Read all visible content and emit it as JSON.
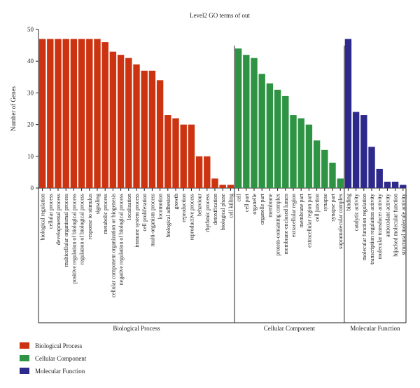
{
  "chart_data": {
    "type": "bar",
    "title": "Level2 GO terms of out",
    "ylabel": "Number of Genes",
    "ylim": [
      0,
      50
    ],
    "yticks": [
      0,
      10,
      20,
      30,
      40,
      50
    ],
    "grid": false,
    "legend_position": "bottom-left",
    "series": [
      {
        "name": "Biological Process",
        "color": "#cc3311",
        "categories": [
          "biological regulation",
          "cellular process",
          "developmental process",
          "multicellular organismal process",
          "positive regulation of biological process",
          "regulation of biological process",
          "response to stimulus",
          "signaling",
          "metabolic process",
          "cellular component organization or biogenesis",
          "negative regulation of biological process",
          "localization",
          "immune system process",
          "cell proliferation",
          "multi-organism process",
          "locomotion",
          "biological adhesion",
          "growth",
          "reproduction",
          "reproductive process",
          "behaviour",
          "rhythmic process",
          "detoxification",
          "biological phase",
          "cell killing"
        ],
        "values": [
          47,
          47,
          47,
          47,
          47,
          47,
          47,
          47,
          46,
          43,
          42,
          41,
          39,
          37,
          37,
          34,
          23,
          22,
          20,
          20,
          10,
          10,
          3,
          1,
          1
        ]
      },
      {
        "name": "Cellular Component",
        "color": "#2e9444",
        "categories": [
          "cell",
          "cell part",
          "organelle",
          "organelle part",
          "membrane",
          "protein-containing complex",
          "membrane-enclosed lumen",
          "extracellular region",
          "membrane part",
          "extracellular region part",
          "cell junction",
          "synapse",
          "synapse part",
          "supramolecular complex"
        ],
        "values": [
          44,
          42,
          41,
          36,
          33,
          31,
          29,
          23,
          22,
          20,
          15,
          12,
          8,
          3
        ]
      },
      {
        "name": "Molecular Function",
        "color": "#2e2a8c",
        "categories": [
          "binding",
          "catalytic activity",
          "molecular function regulation",
          "transcription regulation activity",
          "molecular transducer activity",
          "antioxidant activity",
          "hijacked molecular function",
          "structural molecule activity"
        ],
        "values": [
          47,
          24,
          23,
          13,
          6,
          2,
          2,
          1
        ]
      }
    ]
  }
}
